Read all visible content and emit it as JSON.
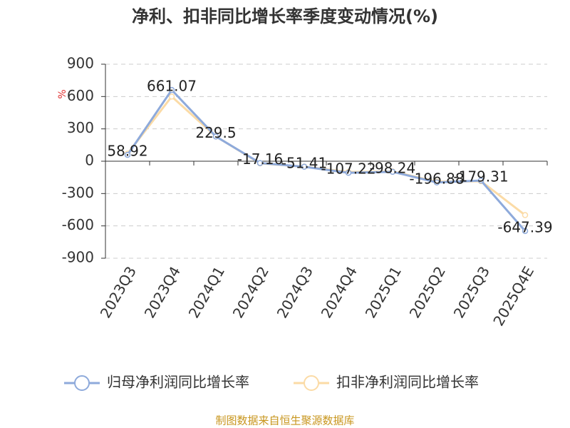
{
  "chart_data": {
    "type": "line",
    "title": "净利、扣非同比增长率季度变动情况(%)",
    "y_label": "%",
    "categories": [
      "2023Q3",
      "2023Q4",
      "2024Q1",
      "2024Q2",
      "2024Q3",
      "2024Q4",
      "2025Q1",
      "2025Q2",
      "2025Q3",
      "2025Q4E"
    ],
    "series": [
      {
        "name": "归母净利润同比增长率",
        "color": "#8eaadb",
        "values": [
          58.92,
          661.07,
          229.5,
          -17.16,
          -51.41,
          -107.22,
          -98.24,
          -196.88,
          -179.31,
          -647.39
        ],
        "show_labels": true
      },
      {
        "name": "扣非净利润同比增长率",
        "color": "#fbdba6",
        "values": [
          70,
          600,
          230,
          -20,
          -50,
          -100,
          -95,
          -190,
          -185,
          -500
        ],
        "show_labels": false
      }
    ],
    "ylim": [
      -900,
      900
    ],
    "yticks": [
      -900,
      -600,
      -300,
      0,
      300,
      600,
      900
    ],
    "grid": true,
    "legend": "bottom",
    "source": "制图数据来自恒生聚源数据库"
  }
}
